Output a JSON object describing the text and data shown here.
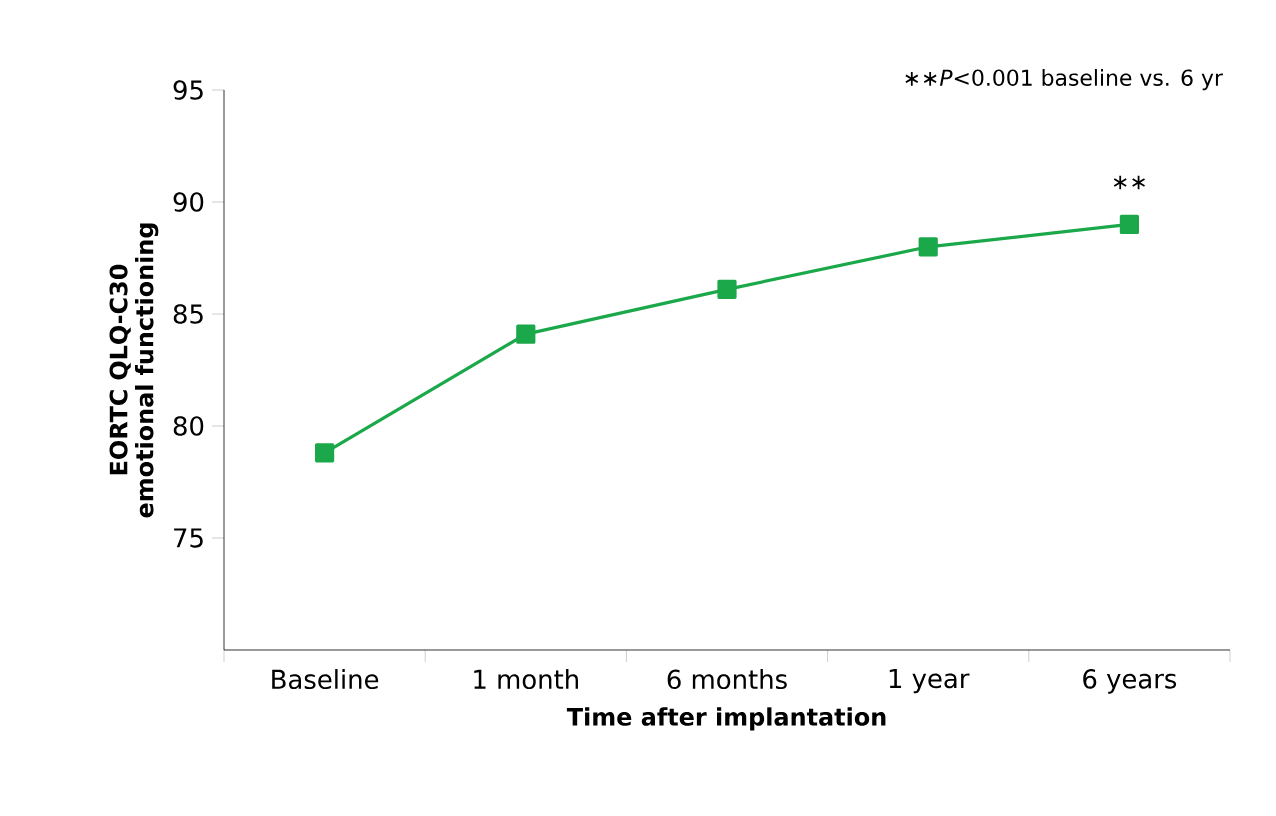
{
  "chart_data": {
    "type": "line",
    "xlabel": "Time after implantation",
    "ylabel": "EORTC QLQ-C30 emotional functioning",
    "categories": [
      "Baseline",
      "1 month",
      "6 months",
      "1 year",
      "6 years"
    ],
    "series": [
      {
        "color": "#1ba84a",
        "values": [
          78.8,
          84.1,
          86.1,
          88.0,
          89.0
        ]
      }
    ],
    "ylim": [
      70,
      95
    ],
    "yticks": [
      75,
      80,
      85,
      90,
      95
    ],
    "marker": "square",
    "line_style": "solid",
    "grid": false,
    "annotations": [
      "∗∗*P*<0.001 baseline vs. 6 yr",
      "∗∗"
    ]
  }
}
